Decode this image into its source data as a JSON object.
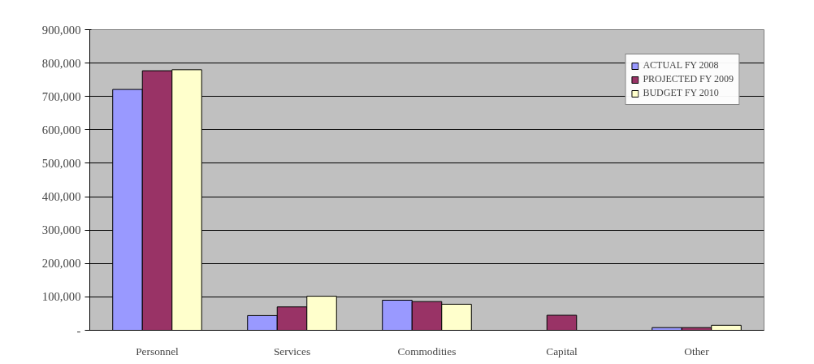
{
  "chart_data": {
    "type": "bar",
    "categories": [
      "Personnel",
      "Services",
      "Commodities",
      "Capital",
      "Other"
    ],
    "series": [
      {
        "name": "ACTUAL FY 2008",
        "color": "#9999ff",
        "values": [
          721000,
          44000,
          90000,
          null,
          8000
        ]
      },
      {
        "name": "PROJECTED FY 2009",
        "color": "#993366",
        "values": [
          777000,
          70000,
          86000,
          45000,
          8000
        ]
      },
      {
        "name": "BUDGET FY 2010",
        "color": "#ffffcc",
        "values": [
          780000,
          102000,
          78000,
          null,
          15000
        ]
      }
    ],
    "ylim": [
      0,
      900000
    ],
    "yticks": [
      {
        "value": 0,
        "label": "-"
      },
      {
        "value": 100000,
        "label": "100,000"
      },
      {
        "value": 200000,
        "label": "200,000"
      },
      {
        "value": 300000,
        "label": "300,000"
      },
      {
        "value": 400000,
        "label": "400,000"
      },
      {
        "value": 500000,
        "label": "500,000"
      },
      {
        "value": 600000,
        "label": "600,000"
      },
      {
        "value": 700000,
        "label": "700,000"
      },
      {
        "value": 800000,
        "label": "800,000"
      },
      {
        "value": 900000,
        "label": "900,000"
      }
    ],
    "grid": "y",
    "legend": "top right"
  }
}
